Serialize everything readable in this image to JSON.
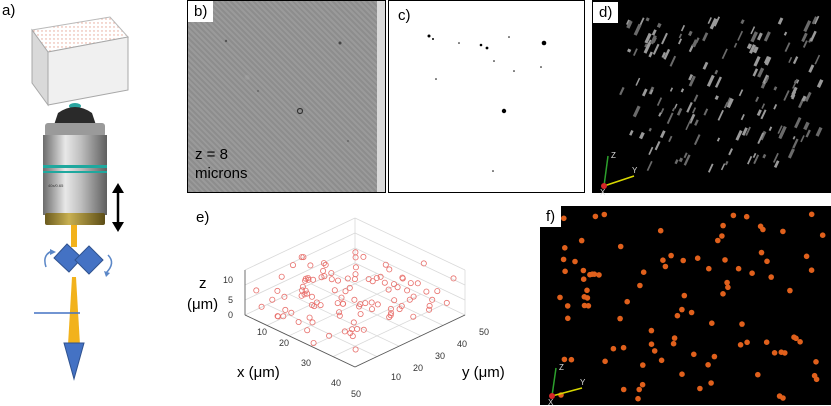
{
  "labels": {
    "a": "a)",
    "b": "b)",
    "c": "c)",
    "d": "d)",
    "e": "e)",
    "f": "f)"
  },
  "panel_b": {
    "z_line1": "z = 8",
    "z_line2": "microns"
  },
  "panel_e": {
    "z_label_line1": "z",
    "z_label_line2": "(μm)",
    "x_label": "x (μm)",
    "y_label": "y (μm)",
    "z_ticks": [
      "0",
      "5",
      "10"
    ],
    "x_ticks": [
      "10",
      "20",
      "30",
      "40",
      "50"
    ],
    "y_ticks": [
      "10",
      "20",
      "30",
      "40",
      "50"
    ]
  },
  "axes_triad": {
    "x": "X",
    "y": "Y",
    "z": "Z"
  },
  "colors": {
    "scatter_marker": "#e8706c",
    "sphere_marker": "#e0601c",
    "beam": "#f2b21c",
    "optics_blue": "#4472c4",
    "arrow_blue": "#5b87c7"
  }
}
